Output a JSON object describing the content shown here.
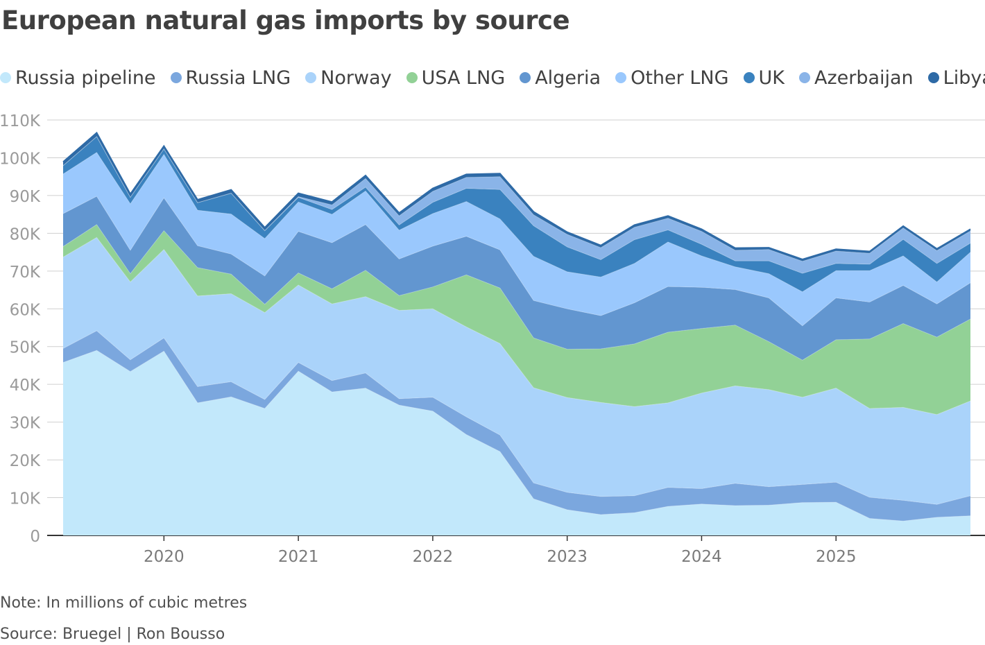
{
  "title": "European natural gas imports by source",
  "note": "Note: In millions of cubic metres",
  "source": "Source: Bruegel | Ron Bousso",
  "chart_data": {
    "type": "area",
    "stacked": true,
    "title": "European natural gas imports by source",
    "xlabel": "",
    "ylabel": "",
    "ylim": [
      0,
      110000
    ],
    "y_ticks": [
      "0",
      "10K",
      "20K",
      "30K",
      "40K",
      "50K",
      "60K",
      "70K",
      "80K",
      "90K",
      "100K",
      "110K"
    ],
    "x_ticks": [
      "2020",
      "2021",
      "2022",
      "2023",
      "2024",
      "2025"
    ],
    "x": [
      "2019 Q2",
      "2019 Q3",
      "2019 Q4",
      "2020 Q1",
      "2020 Q2",
      "2020 Q3",
      "2020 Q4",
      "2021 Q1",
      "2021 Q2",
      "2021 Q3",
      "2021 Q4",
      "2022 Q1",
      "2022 Q2",
      "2022 Q3",
      "2022 Q4",
      "2023 Q1",
      "2023 Q2",
      "2023 Q3",
      "2023 Q4",
      "2024 Q1",
      "2024 Q2",
      "2024 Q3",
      "2024 Q4",
      "2025 Q1",
      "2025 Q2",
      "2025 Q3",
      "2025 Q4",
      "2026 Q1"
    ],
    "legend_position": "top",
    "grid": true,
    "series": [
      {
        "name": "Russia pipeline",
        "color": "#c2e8fb",
        "values": [
          45800,
          49000,
          43400,
          48800,
          35100,
          36700,
          33600,
          43500,
          38000,
          39000,
          34500,
          32900,
          26700,
          22200,
          9700,
          6800,
          5500,
          6000,
          7700,
          8300,
          7900,
          8000,
          8700,
          8800,
          4500,
          3800,
          4800,
          5200
        ]
      },
      {
        "name": "Russia LNG",
        "color": "#7ba7de",
        "values": [
          3700,
          5200,
          3100,
          3500,
          4300,
          4000,
          2400,
          2300,
          3000,
          4000,
          1700,
          3700,
          4700,
          4400,
          4200,
          4600,
          4800,
          4500,
          5000,
          4100,
          5900,
          4900,
          4800,
          5300,
          5600,
          5500,
          3400,
          5300
        ]
      },
      {
        "name": "Norway",
        "color": "#aad3fa",
        "values": [
          24200,
          24700,
          20600,
          23400,
          24000,
          23300,
          23000,
          20500,
          20300,
          20200,
          23400,
          23400,
          23800,
          24200,
          25200,
          25100,
          24900,
          23600,
          22400,
          25300,
          25800,
          25700,
          23100,
          24900,
          23500,
          24600,
          23800,
          25100
        ]
      },
      {
        "name": "USA LNG",
        "color": "#92d196",
        "values": [
          2800,
          3400,
          2200,
          5000,
          7500,
          5200,
          2200,
          3200,
          4000,
          7000,
          3900,
          5800,
          13800,
          14700,
          13200,
          12800,
          14200,
          16600,
          18700,
          17100,
          16100,
          12700,
          9800,
          12800,
          18400,
          22200,
          20500,
          21700
        ]
      },
      {
        "name": "Algeria",
        "color": "#6296d0",
        "values": [
          8700,
          7500,
          6200,
          8700,
          5800,
          5300,
          7500,
          11000,
          12200,
          12100,
          9700,
          10800,
          10200,
          10100,
          9900,
          10700,
          8800,
          10900,
          12100,
          10900,
          9400,
          11600,
          9100,
          11100,
          9800,
          10100,
          8800,
          9600
        ]
      },
      {
        "name": "Other LNG",
        "color": "#9ac8fd",
        "values": [
          10500,
          11600,
          12300,
          11500,
          9400,
          10600,
          9900,
          7800,
          7500,
          8900,
          7600,
          8600,
          9200,
          8200,
          11700,
          9800,
          10200,
          10400,
          11800,
          8300,
          6000,
          6400,
          9000,
          7200,
          8300,
          7800,
          5800,
          8100
        ]
      },
      {
        "name": "UK",
        "color": "#3a82bf",
        "values": [
          2200,
          4200,
          1700,
          1400,
          2000,
          5500,
          2100,
          1200,
          1300,
          1000,
          1400,
          3000,
          3500,
          7800,
          8100,
          6600,
          4600,
          6300,
          3200,
          3100,
          1600,
          3400,
          4900,
          1900,
          1700,
          4400,
          4900,
          2400
        ]
      },
      {
        "name": "Azerbaijan",
        "color": "#8ab4e8",
        "values": [
          0,
          0,
          0,
          0,
          0,
          0,
          0,
          200,
          1200,
          2300,
          2400,
          2900,
          2900,
          3400,
          2900,
          3300,
          3200,
          3300,
          3100,
          3400,
          2800,
          3000,
          3200,
          3300,
          2900,
          3000,
          3400,
          3200
        ]
      },
      {
        "name": "Libya",
        "color": "#2e6aa6",
        "values": [
          1000,
          1000,
          900,
          800,
          800,
          900,
          800,
          900,
          800,
          800,
          800,
          800,
          800,
          800,
          800,
          600,
          600,
          600,
          600,
          600,
          600,
          500,
          500,
          500,
          500,
          500,
          500,
          500
        ]
      }
    ]
  }
}
